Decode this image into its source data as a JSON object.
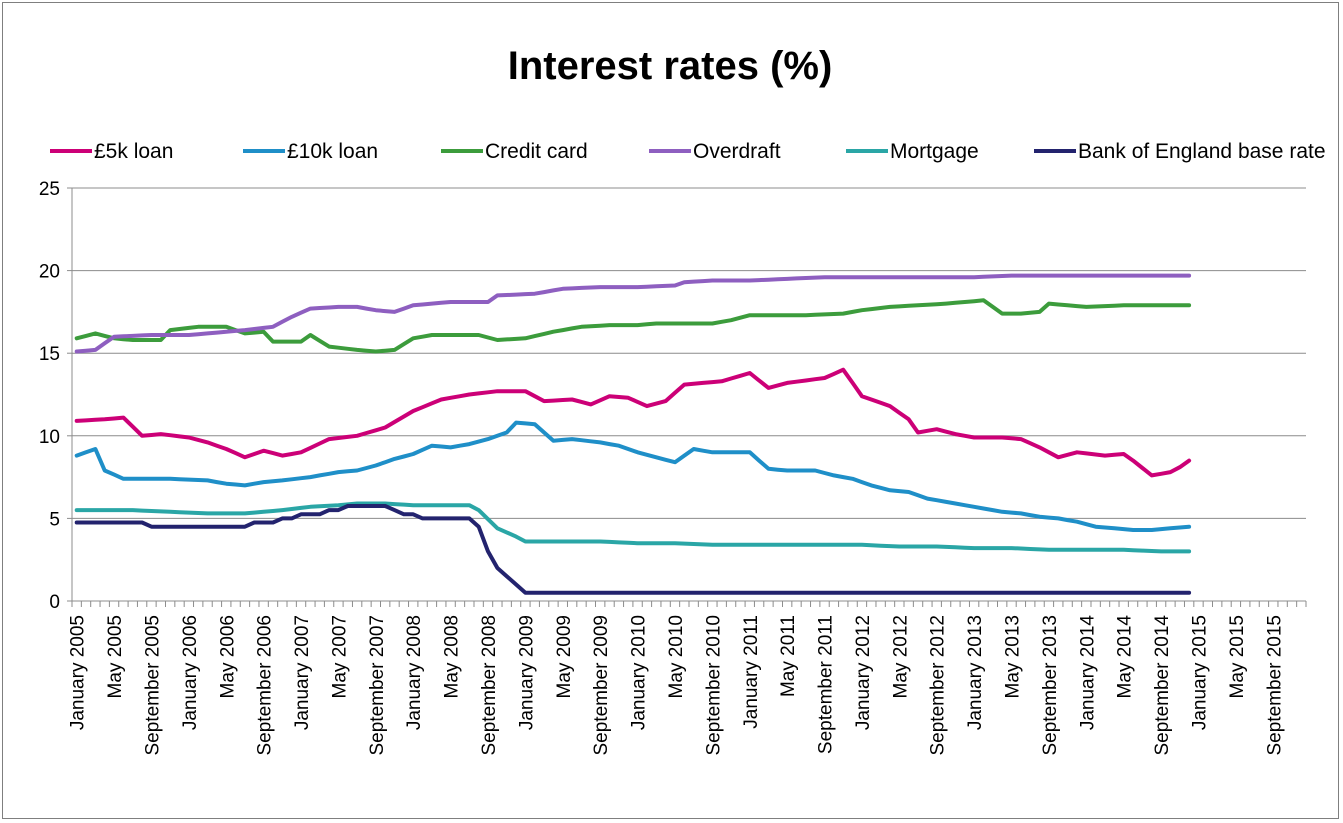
{
  "chart_data": {
    "type": "line",
    "title": "Interest rates (%)",
    "xlabel": "",
    "ylabel": "",
    "ylim": [
      0,
      25
    ],
    "yticks": [
      "0",
      "5",
      "10",
      "15",
      "20",
      "25"
    ],
    "grid": true,
    "legend_position": "top",
    "x_tick_labels": [
      "January 2005",
      "May 2005",
      "September 2005",
      "January 2006",
      "May 2006",
      "September 2006",
      "January 2007",
      "May 2007",
      "September 2007",
      "January 2008",
      "May 2008",
      "September 2008",
      "January 2009",
      "May 2009",
      "September 2009",
      "January 2010",
      "May 2010",
      "September 2010",
      "January 2011",
      "May 2011",
      "September 2011",
      "January 2012",
      "May 2012",
      "September 2012",
      "January 2013",
      "May 2013",
      "September 2013",
      "January 2014",
      "May 2014",
      "September 2014",
      "January 2015",
      "May 2015",
      "September 2015"
    ],
    "series": [
      {
        "name": "£5k loan",
        "color": "#cc0077",
        "keypoints": [
          [
            0,
            10.9
          ],
          [
            3,
            11.0
          ],
          [
            5,
            11.1
          ],
          [
            7,
            10.0
          ],
          [
            9,
            10.1
          ],
          [
            12,
            9.9
          ],
          [
            14,
            9.6
          ],
          [
            16,
            9.2
          ],
          [
            18,
            8.7
          ],
          [
            20,
            9.1
          ],
          [
            22,
            8.8
          ],
          [
            24,
            9.0
          ],
          [
            27,
            9.8
          ],
          [
            30,
            10.0
          ],
          [
            33,
            10.5
          ],
          [
            36,
            11.5
          ],
          [
            39,
            12.2
          ],
          [
            42,
            12.5
          ],
          [
            45,
            12.7
          ],
          [
            48,
            12.7
          ],
          [
            50,
            12.1
          ],
          [
            53,
            12.2
          ],
          [
            55,
            11.9
          ],
          [
            57,
            12.4
          ],
          [
            59,
            12.3
          ],
          [
            61,
            11.8
          ],
          [
            63,
            12.1
          ],
          [
            65,
            13.1
          ],
          [
            69,
            13.3
          ],
          [
            72,
            13.8
          ],
          [
            74,
            12.9
          ],
          [
            76,
            13.2
          ],
          [
            80,
            13.5
          ],
          [
            82,
            14.0
          ],
          [
            84,
            12.4
          ],
          [
            87,
            11.8
          ],
          [
            89,
            11.0
          ],
          [
            90,
            10.2
          ],
          [
            92,
            10.4
          ],
          [
            94,
            10.1
          ],
          [
            96,
            9.9
          ],
          [
            99,
            9.9
          ],
          [
            101,
            9.8
          ],
          [
            103,
            9.3
          ],
          [
            105,
            8.7
          ],
          [
            107,
            9.0
          ],
          [
            110,
            8.8
          ],
          [
            112,
            8.9
          ],
          [
            113,
            8.5
          ],
          [
            115,
            7.6
          ],
          [
            117,
            7.8
          ],
          [
            118,
            8.1
          ],
          [
            119,
            8.5
          ]
        ]
      },
      {
        "name": "£10k loan",
        "color": "#1f8fc8",
        "keypoints": [
          [
            0,
            8.8
          ],
          [
            2,
            9.2
          ],
          [
            3,
            7.9
          ],
          [
            5,
            7.4
          ],
          [
            8,
            7.4
          ],
          [
            10,
            7.4
          ],
          [
            14,
            7.3
          ],
          [
            16,
            7.1
          ],
          [
            18,
            7.0
          ],
          [
            20,
            7.2
          ],
          [
            22,
            7.3
          ],
          [
            25,
            7.5
          ],
          [
            28,
            7.8
          ],
          [
            30,
            7.9
          ],
          [
            32,
            8.2
          ],
          [
            34,
            8.6
          ],
          [
            36,
            8.9
          ],
          [
            38,
            9.4
          ],
          [
            40,
            9.3
          ],
          [
            42,
            9.5
          ],
          [
            44,
            9.8
          ],
          [
            46,
            10.2
          ],
          [
            47,
            10.8
          ],
          [
            49,
            10.7
          ],
          [
            51,
            9.7
          ],
          [
            53,
            9.8
          ],
          [
            56,
            9.6
          ],
          [
            58,
            9.4
          ],
          [
            60,
            9.0
          ],
          [
            62,
            8.7
          ],
          [
            64,
            8.4
          ],
          [
            66,
            9.2
          ],
          [
            68,
            9.0
          ],
          [
            72,
            9.0
          ],
          [
            74,
            8.0
          ],
          [
            76,
            7.9
          ],
          [
            79,
            7.9
          ],
          [
            81,
            7.6
          ],
          [
            83,
            7.4
          ],
          [
            85,
            7.0
          ],
          [
            87,
            6.7
          ],
          [
            89,
            6.6
          ],
          [
            91,
            6.2
          ],
          [
            93,
            6.0
          ],
          [
            95,
            5.8
          ],
          [
            97,
            5.6
          ],
          [
            99,
            5.4
          ],
          [
            101,
            5.3
          ],
          [
            103,
            5.1
          ],
          [
            105,
            5.0
          ],
          [
            107,
            4.8
          ],
          [
            109,
            4.5
          ],
          [
            111,
            4.4
          ],
          [
            113,
            4.3
          ],
          [
            115,
            4.3
          ],
          [
            117,
            4.4
          ],
          [
            119,
            4.5
          ]
        ]
      },
      {
        "name": "Credit card",
        "color": "#3c9c3c",
        "keypoints": [
          [
            0,
            15.9
          ],
          [
            2,
            16.2
          ],
          [
            4,
            15.9
          ],
          [
            6,
            15.8
          ],
          [
            9,
            15.8
          ],
          [
            10,
            16.4
          ],
          [
            13,
            16.6
          ],
          [
            16,
            16.6
          ],
          [
            18,
            16.2
          ],
          [
            20,
            16.3
          ],
          [
            21,
            15.7
          ],
          [
            24,
            15.7
          ],
          [
            25,
            16.1
          ],
          [
            27,
            15.4
          ],
          [
            30,
            15.2
          ],
          [
            32,
            15.1
          ],
          [
            34,
            15.2
          ],
          [
            36,
            15.9
          ],
          [
            38,
            16.1
          ],
          [
            41,
            16.1
          ],
          [
            43,
            16.1
          ],
          [
            45,
            15.8
          ],
          [
            48,
            15.9
          ],
          [
            51,
            16.3
          ],
          [
            54,
            16.6
          ],
          [
            57,
            16.7
          ],
          [
            60,
            16.7
          ],
          [
            62,
            16.8
          ],
          [
            65,
            16.8
          ],
          [
            68,
            16.8
          ],
          [
            70,
            17.0
          ],
          [
            72,
            17.3
          ],
          [
            75,
            17.3
          ],
          [
            78,
            17.3
          ],
          [
            82,
            17.4
          ],
          [
            84,
            17.6
          ],
          [
            87,
            17.8
          ],
          [
            90,
            17.9
          ],
          [
            93,
            18.0
          ],
          [
            95,
            18.1
          ],
          [
            97,
            18.2
          ],
          [
            99,
            17.4
          ],
          [
            101,
            17.4
          ],
          [
            103,
            17.5
          ],
          [
            104,
            18.0
          ],
          [
            106,
            17.9
          ],
          [
            108,
            17.8
          ],
          [
            112,
            17.9
          ],
          [
            116,
            17.9
          ],
          [
            119,
            17.9
          ]
        ]
      },
      {
        "name": "Overdraft",
        "color": "#8e5fc0",
        "keypoints": [
          [
            0,
            15.1
          ],
          [
            2,
            15.2
          ],
          [
            4,
            16.0
          ],
          [
            8,
            16.1
          ],
          [
            12,
            16.1
          ],
          [
            16,
            16.3
          ],
          [
            18,
            16.4
          ],
          [
            21,
            16.6
          ],
          [
            23,
            17.2
          ],
          [
            25,
            17.7
          ],
          [
            28,
            17.8
          ],
          [
            30,
            17.8
          ],
          [
            32,
            17.6
          ],
          [
            34,
            17.5
          ],
          [
            36,
            17.9
          ],
          [
            40,
            18.1
          ],
          [
            44,
            18.1
          ],
          [
            45,
            18.5
          ],
          [
            49,
            18.6
          ],
          [
            52,
            18.9
          ],
          [
            56,
            19.0
          ],
          [
            60,
            19.0
          ],
          [
            64,
            19.1
          ],
          [
            65,
            19.3
          ],
          [
            68,
            19.4
          ],
          [
            72,
            19.4
          ],
          [
            76,
            19.5
          ],
          [
            80,
            19.6
          ],
          [
            84,
            19.6
          ],
          [
            88,
            19.6
          ],
          [
            92,
            19.6
          ],
          [
            96,
            19.6
          ],
          [
            100,
            19.7
          ],
          [
            104,
            19.7
          ],
          [
            110,
            19.7
          ],
          [
            119,
            19.7
          ]
        ]
      },
      {
        "name": "Mortgage",
        "color": "#2aa6a6",
        "keypoints": [
          [
            0,
            5.5
          ],
          [
            6,
            5.5
          ],
          [
            10,
            5.4
          ],
          [
            14,
            5.3
          ],
          [
            18,
            5.3
          ],
          [
            22,
            5.5
          ],
          [
            25,
            5.7
          ],
          [
            28,
            5.8
          ],
          [
            30,
            5.9
          ],
          [
            33,
            5.9
          ],
          [
            36,
            5.8
          ],
          [
            40,
            5.8
          ],
          [
            42,
            5.8
          ],
          [
            43,
            5.5
          ],
          [
            45,
            4.4
          ],
          [
            47,
            3.9
          ],
          [
            48,
            3.6
          ],
          [
            52,
            3.6
          ],
          [
            56,
            3.6
          ],
          [
            60,
            3.5
          ],
          [
            64,
            3.5
          ],
          [
            68,
            3.4
          ],
          [
            72,
            3.4
          ],
          [
            76,
            3.4
          ],
          [
            80,
            3.4
          ],
          [
            84,
            3.4
          ],
          [
            88,
            3.3
          ],
          [
            92,
            3.3
          ],
          [
            96,
            3.2
          ],
          [
            100,
            3.2
          ],
          [
            104,
            3.1
          ],
          [
            108,
            3.1
          ],
          [
            112,
            3.1
          ],
          [
            116,
            3.0
          ],
          [
            119,
            3.0
          ]
        ]
      },
      {
        "name": "Bank of England base rate",
        "color": "#23236e",
        "keypoints": [
          [
            0,
            4.75
          ],
          [
            7,
            4.75
          ],
          [
            7.5,
            4.5
          ],
          [
            18,
            4.5
          ],
          [
            19,
            4.75
          ],
          [
            21,
            4.75
          ],
          [
            22,
            5.0
          ],
          [
            23,
            5.0
          ],
          [
            24,
            5.25
          ],
          [
            26,
            5.25
          ],
          [
            27,
            5.5
          ],
          [
            28,
            5.5
          ],
          [
            29,
            5.75
          ],
          [
            33,
            5.75
          ],
          [
            34,
            5.5
          ],
          [
            35,
            5.25
          ],
          [
            36,
            5.25
          ],
          [
            37,
            5.0
          ],
          [
            42,
            5.0
          ],
          [
            43,
            4.5
          ],
          [
            44,
            3.0
          ],
          [
            45,
            2.0
          ],
          [
            46,
            1.5
          ],
          [
            47,
            1.0
          ],
          [
            48,
            0.5
          ],
          [
            119,
            0.5
          ]
        ]
      }
    ]
  }
}
